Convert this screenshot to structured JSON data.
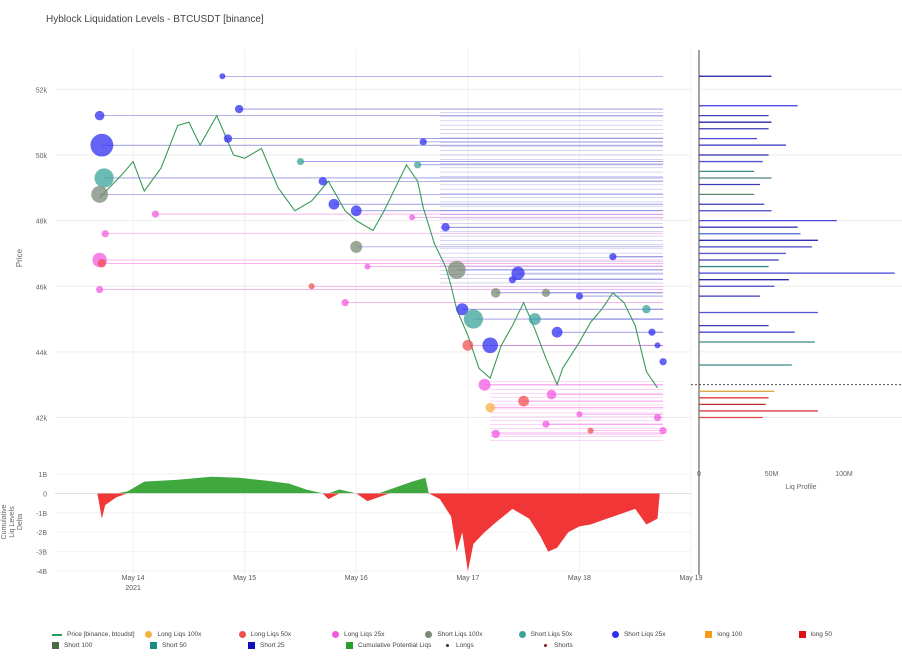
{
  "title": "Hyblock Liquidation Levels - BTCUSDT [binance]",
  "chart_data": {
    "type": "scatter",
    "title": "Hyblock Liquidation Levels - BTCUSDT [binance]",
    "price_panel": {
      "ylabel": "Price",
      "ylim": [
        40400,
        53200
      ],
      "yticks": [
        42000,
        44000,
        46000,
        48000,
        50000,
        52000
      ],
      "ytick_labels": [
        "42k",
        "44k",
        "46k",
        "48k",
        "50k",
        "52k"
      ],
      "xlim": [
        13.3,
        19.0
      ],
      "price_series": [
        [
          13.7,
          48700
        ],
        [
          13.9,
          49400
        ],
        [
          14.0,
          49800
        ],
        [
          14.1,
          48900
        ],
        [
          14.25,
          49600
        ],
        [
          14.4,
          50900
        ],
        [
          14.5,
          51000
        ],
        [
          14.6,
          50300
        ],
        [
          14.75,
          51200
        ],
        [
          14.9,
          50000
        ],
        [
          15.0,
          49900
        ],
        [
          15.15,
          50200
        ],
        [
          15.3,
          49000
        ],
        [
          15.45,
          48300
        ],
        [
          15.6,
          48600
        ],
        [
          15.75,
          49200
        ],
        [
          15.9,
          48300
        ],
        [
          16.0,
          48000
        ],
        [
          16.15,
          47700
        ],
        [
          16.25,
          48300
        ],
        [
          16.35,
          49000
        ],
        [
          16.45,
          49700
        ],
        [
          16.55,
          49200
        ],
        [
          16.6,
          48400
        ],
        [
          16.7,
          47300
        ],
        [
          16.8,
          46600
        ],
        [
          16.85,
          46000
        ],
        [
          16.9,
          45300
        ],
        [
          17.0,
          44500
        ],
        [
          17.1,
          43500
        ],
        [
          17.2,
          43200
        ],
        [
          17.3,
          44200
        ],
        [
          17.4,
          44800
        ],
        [
          17.5,
          45500
        ],
        [
          17.6,
          44700
        ],
        [
          17.7,
          43800
        ],
        [
          17.8,
          43000
        ],
        [
          17.85,
          43500
        ],
        [
          18.0,
          44300
        ],
        [
          18.1,
          44900
        ],
        [
          18.2,
          45300
        ],
        [
          18.3,
          45800
        ],
        [
          18.4,
          45500
        ],
        [
          18.5,
          44800
        ],
        [
          18.6,
          43400
        ],
        [
          18.7,
          42900
        ]
      ],
      "long_levels": [
        [
          13.7,
          46800,
          1.2
        ],
        [
          13.72,
          46700,
          0.7
        ],
        [
          13.7,
          45900,
          0.6
        ],
        [
          13.75,
          47600,
          0.6
        ],
        [
          14.2,
          48200,
          0.6
        ],
        [
          15.6,
          46000,
          0.5
        ],
        [
          15.9,
          45500,
          0.6
        ],
        [
          16.1,
          46600,
          0.5
        ],
        [
          16.5,
          48100,
          0.5
        ],
        [
          17.0,
          44200,
          0.9
        ],
        [
          17.15,
          43000,
          1.0
        ],
        [
          17.2,
          42300,
          0.8
        ],
        [
          17.25,
          41500,
          0.7
        ],
        [
          17.5,
          42500,
          0.9
        ],
        [
          17.7,
          41800,
          0.6
        ],
        [
          17.75,
          42700,
          0.8
        ],
        [
          18.0,
          42100,
          0.5
        ],
        [
          18.1,
          41600,
          0.5
        ],
        [
          18.7,
          42000,
          0.6
        ],
        [
          18.75,
          41600,
          0.6
        ]
      ],
      "short_levels": [
        [
          13.7,
          51200,
          0.8
        ],
        [
          13.72,
          50300,
          1.9
        ],
        [
          13.74,
          49300,
          1.6
        ],
        [
          13.7,
          48800,
          1.4
        ],
        [
          14.8,
          52400,
          0.5
        ],
        [
          14.95,
          51400,
          0.7
        ],
        [
          14.85,
          50500,
          0.7
        ],
        [
          15.5,
          49800,
          0.6
        ],
        [
          15.7,
          49200,
          0.7
        ],
        [
          15.8,
          48500,
          0.9
        ],
        [
          16.0,
          48300,
          0.9
        ],
        [
          16.0,
          47200,
          1.0
        ],
        [
          16.55,
          49700,
          0.6
        ],
        [
          16.6,
          50400,
          0.6
        ],
        [
          16.8,
          47800,
          0.7
        ],
        [
          16.9,
          46500,
          1.5
        ],
        [
          16.95,
          45300,
          1.0
        ],
        [
          17.05,
          45000,
          1.6
        ],
        [
          17.2,
          44200,
          1.3
        ],
        [
          17.25,
          45800,
          0.8
        ],
        [
          17.4,
          46200,
          0.6
        ],
        [
          17.45,
          46400,
          1.1
        ],
        [
          17.6,
          45000,
          1.0
        ],
        [
          17.7,
          45800,
          0.7
        ],
        [
          17.8,
          44600,
          0.9
        ],
        [
          18.0,
          45700,
          0.6
        ],
        [
          18.3,
          46900,
          0.6
        ],
        [
          18.6,
          45300,
          0.7
        ],
        [
          18.65,
          44600,
          0.6
        ],
        [
          18.7,
          44200,
          0.5
        ],
        [
          18.75,
          43700,
          0.6
        ]
      ]
    },
    "liq_profile": {
      "xlabel": "Liq Profile",
      "xticks": [
        0,
        50000000,
        100000000
      ],
      "xtick_labels": [
        "0",
        "50M",
        "100M"
      ],
      "bars": [
        [
          52400,
          50,
          "#1a1aa3"
        ],
        [
          51500,
          68,
          "#3a3ae0"
        ],
        [
          51200,
          48,
          "#4040c0"
        ],
        [
          51000,
          50,
          "#2a2aa8"
        ],
        [
          50800,
          48,
          "#3535b8"
        ],
        [
          50500,
          40,
          "#4a4ad0"
        ],
        [
          50300,
          60,
          "#3030c0"
        ],
        [
          50000,
          48,
          "#2c2ca4"
        ],
        [
          49800,
          44,
          "#5050d0"
        ],
        [
          49500,
          38,
          "#3a8a8a"
        ],
        [
          49300,
          50,
          "#4f7f7f"
        ],
        [
          49100,
          42,
          "#3a3ab8"
        ],
        [
          48800,
          38,
          "#5a8a6a"
        ],
        [
          48500,
          45,
          "#3a3ab8"
        ],
        [
          48300,
          50,
          "#4444c4"
        ],
        [
          48000,
          95,
          "#4a4ad8"
        ],
        [
          47800,
          68,
          "#3a3ab8"
        ],
        [
          47600,
          70,
          "#4a6ad0"
        ],
        [
          47400,
          82,
          "#3030b0"
        ],
        [
          47200,
          78,
          "#4444c4"
        ],
        [
          47000,
          60,
          "#5858d0"
        ],
        [
          46800,
          55,
          "#3a3ab8"
        ],
        [
          46600,
          48,
          "#3a8a8a"
        ],
        [
          46400,
          135,
          "#4040d0"
        ],
        [
          46200,
          62,
          "#2a2aa8"
        ],
        [
          46000,
          52,
          "#4444c4"
        ],
        [
          45700,
          42,
          "#3a3ab8"
        ],
        [
          45200,
          82,
          "#4f4fd0"
        ],
        [
          44800,
          48,
          "#3a3ab8"
        ],
        [
          44600,
          66,
          "#4a4ad0"
        ],
        [
          44300,
          80,
          "#3a8a8a"
        ],
        [
          43600,
          64,
          "#3a8a8a"
        ],
        [
          42800,
          52,
          "#d9a030"
        ],
        [
          42600,
          48,
          "#e03a3a"
        ],
        [
          42400,
          46,
          "#c23030"
        ],
        [
          42200,
          82,
          "#d84040"
        ],
        [
          42000,
          44,
          "#e04848"
        ]
      ]
    },
    "delta_panel": {
      "ylabel": "Cumulative Liq Levels Delta",
      "ylim": [
        -4200000000,
        1200000000
      ],
      "yticks": [
        1000000000,
        0,
        -1000000000,
        -2000000000,
        -3000000000,
        -4000000000
      ],
      "ytick_labels": [
        "1B",
        "0",
        "-1B",
        "-2B",
        "-3B",
        "-4B"
      ],
      "series": [
        [
          13.68,
          0
        ],
        [
          13.72,
          -1300000000
        ],
        [
          13.75,
          -600000000
        ],
        [
          13.85,
          -200000000
        ],
        [
          13.95,
          100000000
        ],
        [
          14.1,
          600000000
        ],
        [
          14.4,
          700000000
        ],
        [
          14.7,
          850000000
        ],
        [
          14.95,
          800000000
        ],
        [
          15.2,
          650000000
        ],
        [
          15.4,
          500000000
        ],
        [
          15.55,
          200000000
        ],
        [
          15.7,
          0
        ],
        [
          15.75,
          -300000000
        ],
        [
          15.85,
          200000000
        ],
        [
          16.0,
          0
        ],
        [
          16.1,
          -400000000
        ],
        [
          16.2,
          -200000000
        ],
        [
          16.3,
          200000000
        ],
        [
          16.5,
          600000000
        ],
        [
          16.62,
          800000000
        ],
        [
          16.65,
          0
        ],
        [
          16.75,
          -300000000
        ],
        [
          16.85,
          -1200000000
        ],
        [
          16.9,
          -3000000000
        ],
        [
          16.95,
          -2000000000
        ],
        [
          17.0,
          -4000000000
        ],
        [
          17.05,
          -2600000000
        ],
        [
          17.15,
          -2000000000
        ],
        [
          17.25,
          -1500000000
        ],
        [
          17.4,
          -800000000
        ],
        [
          17.55,
          -1300000000
        ],
        [
          17.65,
          -2200000000
        ],
        [
          17.72,
          -3000000000
        ],
        [
          17.8,
          -2800000000
        ],
        [
          17.9,
          -2000000000
        ],
        [
          18.0,
          -1700000000
        ],
        [
          18.1,
          -1600000000
        ],
        [
          18.2,
          -1400000000
        ],
        [
          18.3,
          -1200000000
        ],
        [
          18.4,
          -1000000000
        ],
        [
          18.5,
          -800000000
        ],
        [
          18.6,
          -1600000000
        ],
        [
          18.7,
          -1300000000
        ],
        [
          18.72,
          0
        ]
      ]
    },
    "xtick_labels": [
      "May 14",
      "May 15",
      "May 16",
      "May 17",
      "May 18",
      "May 19"
    ],
    "xtick_sublabel": "2021",
    "legend": [
      {
        "label": "Price [binance, btcudst]",
        "color": "#2a9d5c",
        "shape": "line"
      },
      {
        "label": "Long Liqs 100x",
        "color": "#f5b341",
        "shape": "circle"
      },
      {
        "label": "Long Liqs 50x",
        "color": "#f05050",
        "shape": "circle"
      },
      {
        "label": "Long Liqs 25x",
        "color": "#f25ae0",
        "shape": "circle"
      },
      {
        "label": "Short Liqs 100x",
        "color": "#7a8a75",
        "shape": "circle"
      },
      {
        "label": "Short Liqs 50x",
        "color": "#3aa39a",
        "shape": "circle"
      },
      {
        "label": "Short Liqs 25x",
        "color": "#2f2ff0",
        "shape": "circle"
      },
      {
        "label": "long 100",
        "color": "#f59a1a",
        "shape": "square"
      },
      {
        "label": "long 50",
        "color": "#e01010",
        "shape": "square"
      },
      {
        "label": "Short 100",
        "color": "#4a6a45",
        "shape": "square"
      },
      {
        "label": "Short 50",
        "color": "#1a8a82",
        "shape": "square"
      },
      {
        "label": "Short 25",
        "color": "#1010c0",
        "shape": "square"
      },
      {
        "label": "Cumulative Potential Liqs",
        "color": "#2aa02a",
        "shape": "square"
      },
      {
        "label": "Longs",
        "color": "#333333",
        "shape": "dot"
      },
      {
        "label": "Shorts",
        "color": "#8b1a1a",
        "shape": "dot"
      }
    ]
  }
}
